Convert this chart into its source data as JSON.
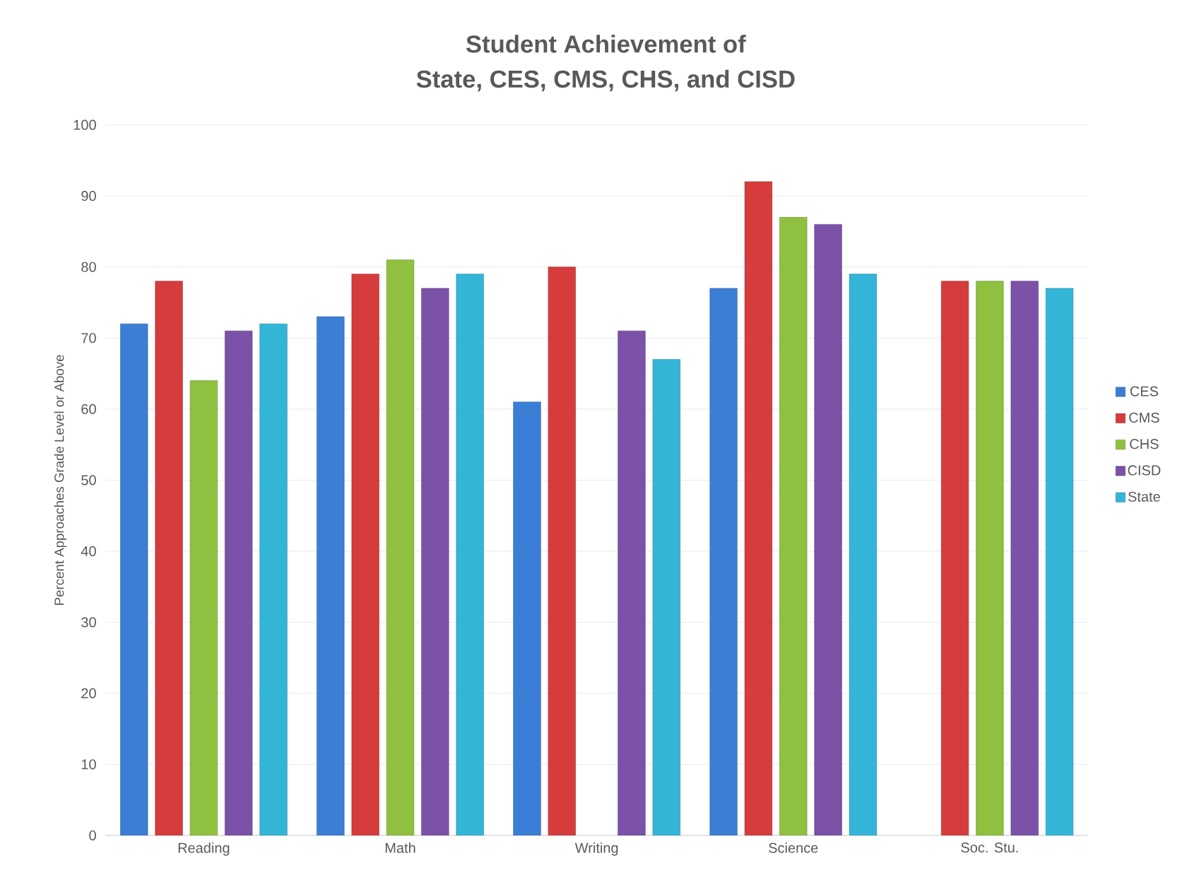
{
  "chart_data": {
    "type": "bar",
    "title": "Student Achievement of",
    "subtitle": "State, CES, CMS, CHS, and CISD",
    "ylabel": "Percent Approaches Grade Level or Above",
    "categories": [
      "Reading",
      "Math",
      "Writing",
      "Science",
      "Soc. Stu."
    ],
    "series": [
      {
        "name": "CES",
        "color": "#3a7fd5",
        "values": [
          72,
          73,
          61,
          77,
          null
        ]
      },
      {
        "name": "CMS",
        "color": "#d63c3c",
        "values": [
          78,
          79,
          80,
          92,
          78
        ]
      },
      {
        "name": "CHS",
        "color": "#8fc040",
        "values": [
          64,
          81,
          null,
          87,
          78
        ]
      },
      {
        "name": "CISD",
        "color": "#7b52a8",
        "values": [
          71,
          77,
          71,
          86,
          78
        ]
      },
      {
        "name": "State",
        "color": "#33b5d8",
        "values": [
          72,
          79,
          67,
          79,
          77
        ]
      }
    ],
    "ylim": [
      0,
      100
    ],
    "yticks": [
      0,
      10,
      20,
      30,
      40,
      50,
      60,
      70,
      80,
      90,
      100
    ],
    "grid": "y",
    "legend": "right"
  }
}
